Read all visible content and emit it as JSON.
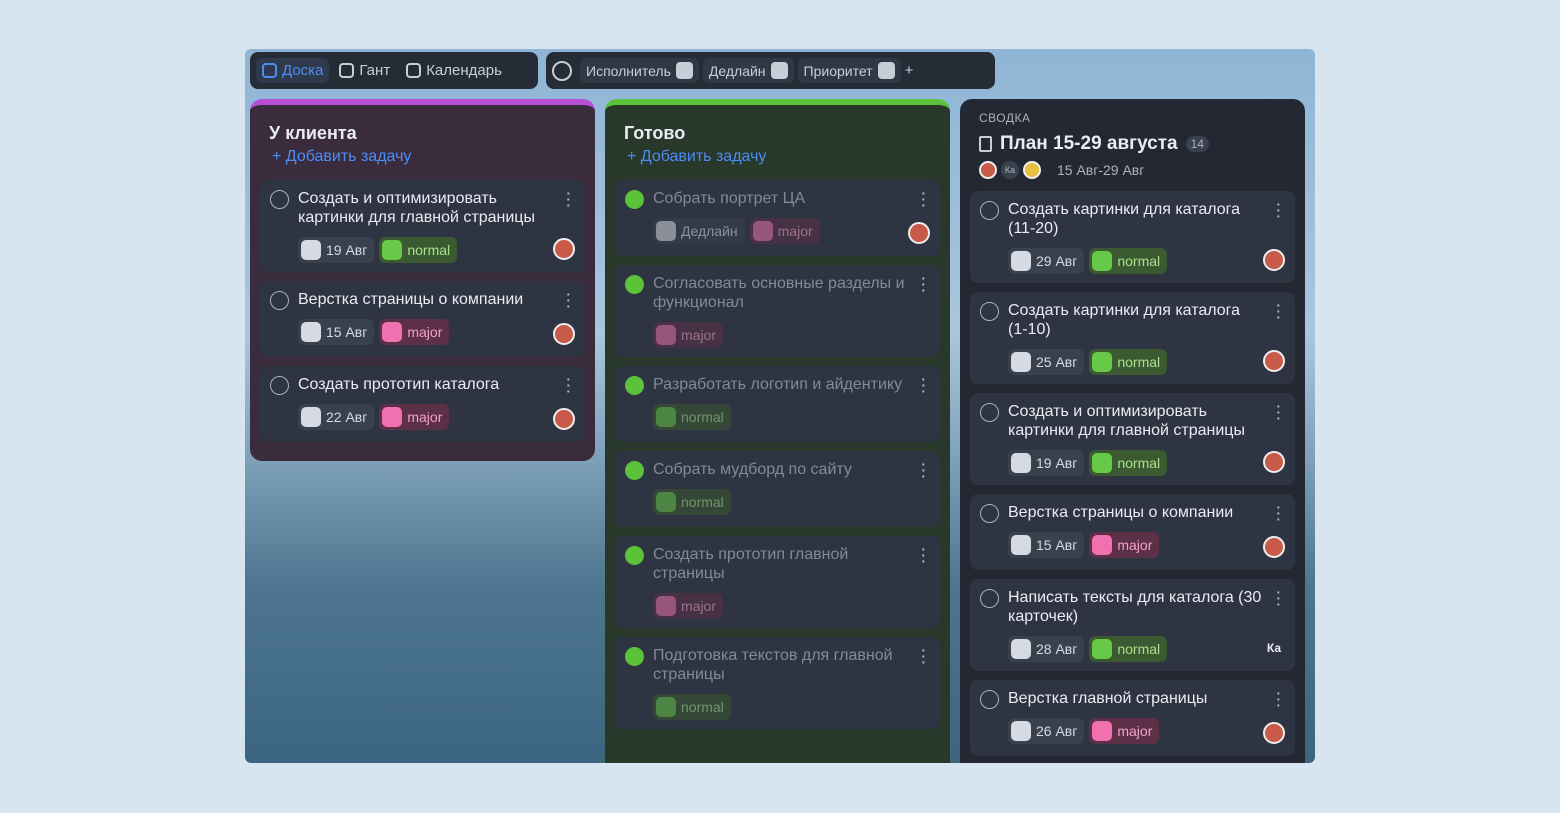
{
  "toolbar": {
    "views": [
      "Доска",
      "Гант",
      "Календарь"
    ],
    "filters": [
      "Исполнитель",
      "Дедлайн",
      "Приоритет"
    ]
  },
  "columns": [
    {
      "title": "У клиента",
      "add": "Добавить задачу",
      "cards": [
        {
          "title": "Создать и оптимизировать картинки для главной страницы",
          "date": "19 Авг",
          "priority": "normal"
        },
        {
          "title": "Верстка страницы о компании",
          "date": "15 Авг",
          "priority": "major"
        },
        {
          "title": "Создать прототип каталога",
          "date": "22 Авг",
          "priority": "major"
        }
      ]
    },
    {
      "title": "Готово",
      "add": "Добавить задачу",
      "cards": [
        {
          "title": "Собрать портрет ЦА",
          "date": "Дедлайн",
          "priority": "major"
        },
        {
          "title": "Согласовать основные разделы и функционал",
          "priority": "major"
        },
        {
          "title": "Разработать логотип и айдентику",
          "priority": "normal"
        },
        {
          "title": "Собрать мудборд по сайту",
          "priority": "normal"
        },
        {
          "title": "Создать прототип главной страницы",
          "priority": "major"
        },
        {
          "title": "Подготовка текстов для главной страницы",
          "priority": "normal"
        }
      ]
    }
  ],
  "summary": {
    "label": "СВОДКА",
    "title": "План 15-29 августа",
    "count": 14,
    "avatar": "Ка",
    "dates": "15 Авг-29 Авг",
    "cards": [
      {
        "title": "Создать картинки для каталога (11-20)",
        "date": "29 Авг",
        "priority": "normal"
      },
      {
        "title": "Создать картинки для каталога (1-10)",
        "date": "25 Авг",
        "priority": "normal"
      },
      {
        "title": "Создать и оптимизировать картинки для главной страницы",
        "date": "19 Авг",
        "priority": "normal"
      },
      {
        "title": "Верстка страницы о компании",
        "date": "15 Авг",
        "priority": "major"
      },
      {
        "title": "Написать тексты для каталога (30 карточек)",
        "date": "28 Авг",
        "priority": "normal",
        "assignee": "Ка"
      },
      {
        "title": "Верстка главной страницы",
        "date": "26 Авг",
        "priority": "major"
      }
    ]
  }
}
